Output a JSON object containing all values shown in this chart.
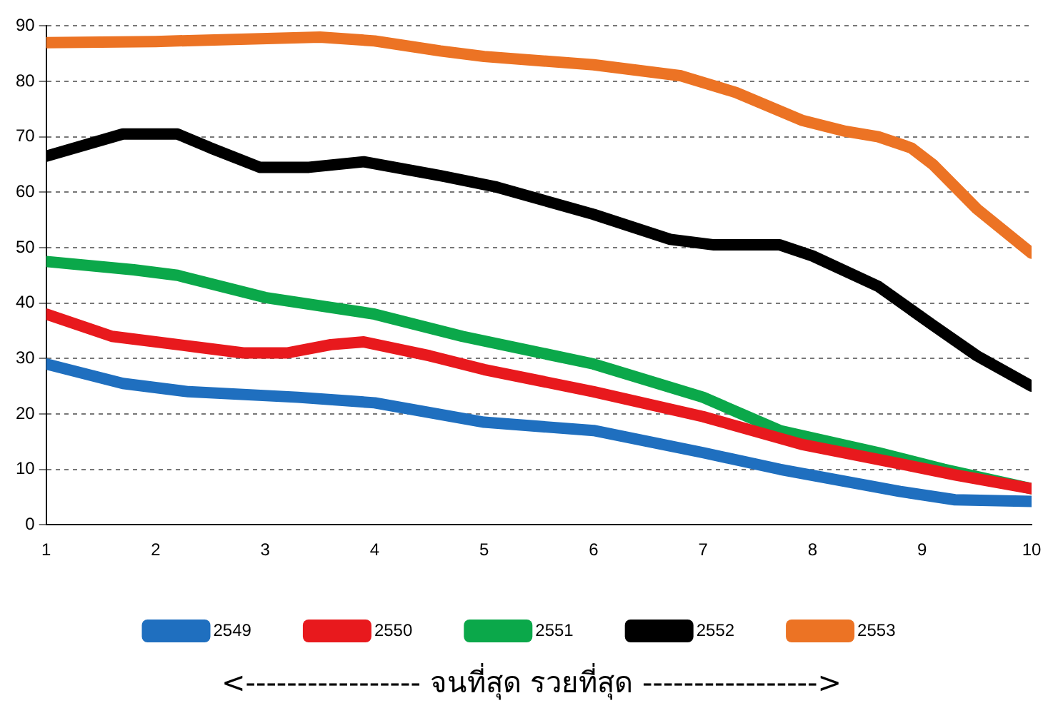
{
  "chart_data": {
    "type": "line",
    "xlabel": "<----------------- จนที่สุด รวยที่สุด ----------------->",
    "xlim": [
      1,
      10
    ],
    "xticks": [
      1,
      2,
      3,
      4,
      5,
      6,
      7,
      8,
      9,
      10
    ],
    "ylim": [
      0,
      90
    ],
    "yticks": [
      0,
      10,
      20,
      30,
      40,
      50,
      60,
      70,
      80,
      90
    ],
    "grid": "y",
    "legend": "bottom",
    "marker": "none",
    "line_style": "solid",
    "series": [
      {
        "name": "2549",
        "color": "#1f6fbf",
        "x": [
          1,
          1.7,
          2.3,
          3.3,
          4,
          5,
          6,
          7,
          7.7,
          8.8,
          9.3,
          10
        ],
        "values": [
          29,
          25.5,
          24,
          23,
          22,
          18.5,
          17,
          13,
          10,
          6,
          4.5,
          4.2
        ]
      },
      {
        "name": "2550",
        "color": "#e8191d",
        "x": [
          1,
          1.6,
          2.4,
          2.8,
          3.2,
          3.6,
          3.9,
          4.5,
          5,
          6,
          7,
          7.9,
          8.8,
          9.3,
          10
        ],
        "values": [
          38,
          34,
          32,
          31,
          31,
          32.5,
          33,
          30.5,
          28,
          24,
          19.5,
          14.5,
          11,
          9,
          6.5
        ]
      },
      {
        "name": "2551",
        "color": "#0ba84a",
        "x": [
          1,
          1.8,
          2.2,
          3,
          4,
          4.8,
          6,
          7,
          7.7,
          8.6,
          9.2,
          10
        ],
        "values": [
          47.5,
          46,
          45,
          41,
          38,
          34,
          29,
          23,
          17,
          13,
          10,
          6.5
        ]
      },
      {
        "name": "2552",
        "color": "#000000",
        "x": [
          1,
          1.7,
          2.2,
          2.5,
          2.95,
          3.4,
          3.9,
          4.6,
          5.1,
          6,
          6.7,
          7.1,
          7.7,
          8,
          8.6,
          9.1,
          9.5,
          10
        ],
        "values": [
          66.5,
          70.5,
          70.5,
          68,
          64.5,
          64.5,
          65.5,
          63,
          61,
          56,
          51.5,
          50.5,
          50.5,
          48.5,
          43,
          36,
          30.5,
          25
        ]
      },
      {
        "name": "2553",
        "color": "#ec7324",
        "x": [
          1,
          2,
          3.5,
          4,
          4.6,
          5,
          6,
          6.8,
          7.3,
          7.9,
          8.3,
          8.6,
          8.9,
          9.1,
          9.5,
          10
        ],
        "values": [
          87,
          87.2,
          88,
          87.3,
          85.5,
          84.5,
          83,
          81,
          78,
          73,
          71,
          70,
          68,
          65,
          57,
          49
        ]
      }
    ]
  }
}
